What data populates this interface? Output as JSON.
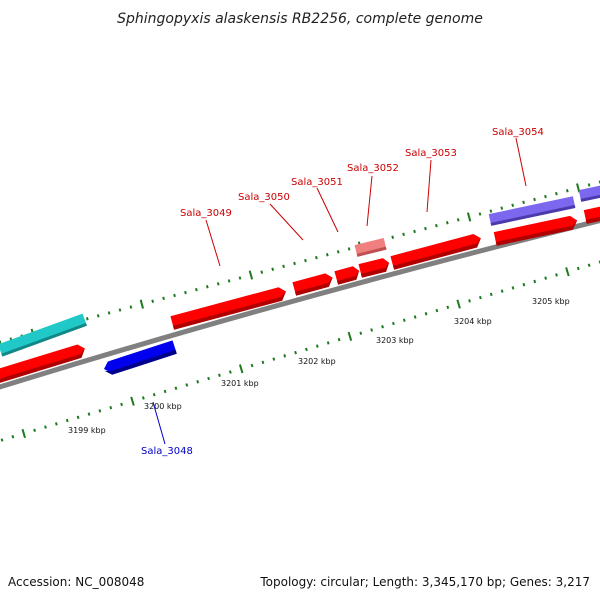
{
  "title": "Sphingopyxis alaskensis RB2256, complete genome",
  "footer": {
    "accession": "Accession: NC_008048",
    "summary": "Topology: circular; Length: 3,345,170 bp; Genes: 3,217"
  },
  "colors": {
    "backbone": "#808080",
    "ticks": "#1f7a1f",
    "forward_gene": "#ff0000",
    "forward_gene_pale": "#f08080",
    "reverse_gene": "#0000ee",
    "cyan_feature": "#20c8c8",
    "purple_feature": "#7b68ee",
    "forward_label": "#cc0000",
    "reverse_label": "#0000cc"
  },
  "scale_labels": [
    "3199 kbp",
    "3200 kbp",
    "3201 kbp",
    "3202 kbp",
    "3203 kbp",
    "3204 kbp",
    "3205 kbp"
  ],
  "gene_labels": {
    "sala_3048": "Sala_3048",
    "sala_3049": "Sala_3049",
    "sala_3050": "Sala_3050",
    "sala_3051": "Sala_3051",
    "sala_3052": "Sala_3052",
    "sala_3053": "Sala_3053",
    "sala_3054": "Sala_3054"
  }
}
